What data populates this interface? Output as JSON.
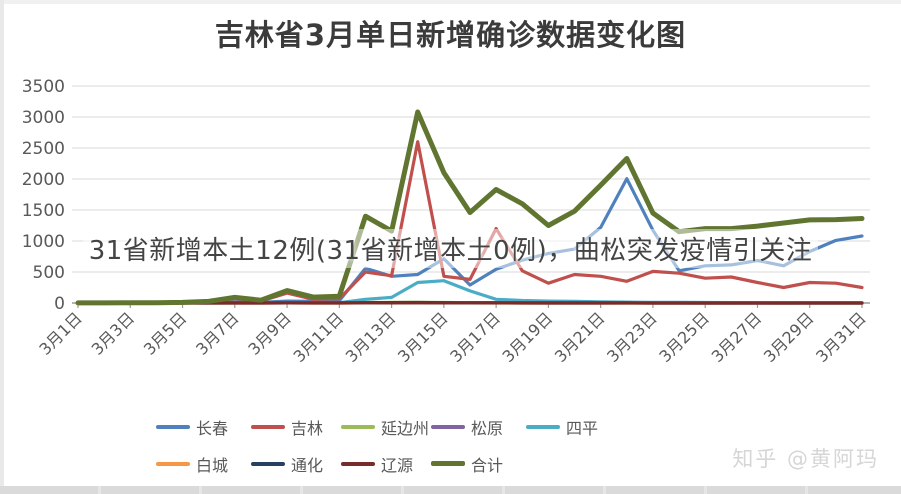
{
  "title": "吉林省3月单日新增确诊数据变化图",
  "overlay_text": "31省新增本土12例(31省新增本土0例)，曲松突发疫情引关注",
  "watermark": "知乎 @黄阿玛",
  "style_colors": {
    "gridline": "#d9d9d9",
    "axis": "#9a9a9a",
    "tick": "#9a9a9a",
    "axis_label": "#595959",
    "title_text": "#3b3b3b",
    "overlay_text": "#444444",
    "watermark_text": "#d6d6d6"
  },
  "chart_data": {
    "type": "line",
    "title": "吉林省3月单日新增确诊数据变化图",
    "xlabel": "",
    "ylabel": "",
    "ylim": [
      0,
      3500
    ],
    "ytick_step": 500,
    "ytick_labels": [
      "0",
      "500",
      "1000",
      "1500",
      "2000",
      "2500",
      "3000",
      "3500"
    ],
    "x_tick_every": 2,
    "grid": "horizontal",
    "legend_position": "bottom",
    "categories": [
      "3月1日",
      "3月2日",
      "3月3日",
      "3月4日",
      "3月5日",
      "3月6日",
      "3月7日",
      "3月8日",
      "3月9日",
      "3月10日",
      "3月11日",
      "3月12日",
      "3月13日",
      "3月14日",
      "3月15日",
      "3月16日",
      "3月17日",
      "3月18日",
      "3月19日",
      "3月20日",
      "3月21日",
      "3月22日",
      "3月23日",
      "3月24日",
      "3月25日",
      "3月26日",
      "3月27日",
      "3月28日",
      "3月29日",
      "3月30日",
      "3月31日"
    ],
    "series": [
      {
        "name": "长春",
        "color": "#4f81bd",
        "width": 3.2,
        "values": [
          0,
          0,
          0,
          1,
          2,
          5,
          15,
          10,
          30,
          25,
          35,
          560,
          430,
          460,
          715,
          290,
          545,
          690,
          800,
          870,
          1220,
          2005,
          1175,
          520,
          600,
          615,
          685,
          600,
          830,
          1010,
          1080
        ]
      },
      {
        "name": "吉林",
        "color": "#c0504d",
        "width": 3.2,
        "values": [
          1,
          1,
          2,
          3,
          6,
          15,
          70,
          30,
          160,
          60,
          70,
          500,
          440,
          2601,
          430,
          380,
          1200,
          520,
          320,
          460,
          430,
          350,
          510,
          480,
          400,
          420,
          330,
          250,
          330,
          320,
          250
        ]
      },
      {
        "name": "延边州",
        "color": "#9bbb59",
        "width": 3.2,
        "values": [
          1,
          0,
          0,
          0,
          1,
          2,
          3,
          2,
          5,
          4,
          3,
          8,
          10,
          12,
          8,
          5,
          4,
          3,
          2,
          2,
          1,
          1,
          1,
          1,
          0,
          0,
          1,
          0,
          1,
          1,
          1
        ]
      },
      {
        "name": "松原",
        "color": "#8064a2",
        "width": 3.2,
        "values": [
          0,
          0,
          0,
          0,
          0,
          0,
          1,
          0,
          2,
          1,
          1,
          3,
          2,
          4,
          2,
          1,
          1,
          1,
          0,
          0,
          0,
          1,
          0,
          0,
          0,
          0,
          0,
          0,
          0,
          0,
          0
        ]
      },
      {
        "name": "四平",
        "color": "#4bacc6",
        "width": 3.2,
        "values": [
          0,
          0,
          0,
          0,
          0,
          0,
          0,
          1,
          2,
          3,
          5,
          60,
          90,
          330,
          360,
          195,
          60,
          40,
          30,
          25,
          20,
          15,
          12,
          10,
          8,
          6,
          5,
          4,
          3,
          2,
          2
        ]
      },
      {
        "name": "白城",
        "color": "#f79646",
        "width": 3.2,
        "values": [
          0,
          0,
          0,
          0,
          0,
          0,
          0,
          0,
          1,
          0,
          0,
          2,
          1,
          2,
          1,
          1,
          0,
          0,
          0,
          0,
          0,
          0,
          0,
          0,
          0,
          0,
          0,
          0,
          0,
          0,
          0
        ]
      },
      {
        "name": "通化",
        "color": "#254061",
        "width": 3.2,
        "values": [
          0,
          0,
          0,
          1,
          1,
          2,
          2,
          1,
          3,
          2,
          2,
          5,
          6,
          8,
          5,
          4,
          3,
          2,
          2,
          1,
          1,
          1,
          0,
          0,
          0,
          0,
          0,
          0,
          0,
          0,
          0
        ]
      },
      {
        "name": "辽源",
        "color": "#772c2a",
        "width": 3.2,
        "values": [
          0,
          0,
          0,
          0,
          0,
          0,
          0,
          0,
          2,
          0,
          0,
          3,
          2,
          3,
          2,
          1,
          1,
          0,
          0,
          0,
          0,
          0,
          0,
          0,
          0,
          0,
          0,
          0,
          0,
          0,
          0
        ]
      },
      {
        "name": "合计",
        "color": "#5f7530",
        "width": 5,
        "values": [
          2,
          2,
          3,
          5,
          10,
          25,
          90,
          45,
          200,
          95,
          110,
          1400,
          1160,
          3080,
          2100,
          1460,
          1830,
          1600,
          1250,
          1480,
          1900,
          2330,
          1450,
          1150,
          1200,
          1200,
          1240,
          1290,
          1340,
          1345,
          1363
        ]
      }
    ],
    "legend_rows": [
      [
        "长春",
        "吉林",
        "延边州",
        "松原",
        "四平"
      ],
      [
        "白城",
        "通化",
        "辽源",
        "合计"
      ]
    ]
  }
}
